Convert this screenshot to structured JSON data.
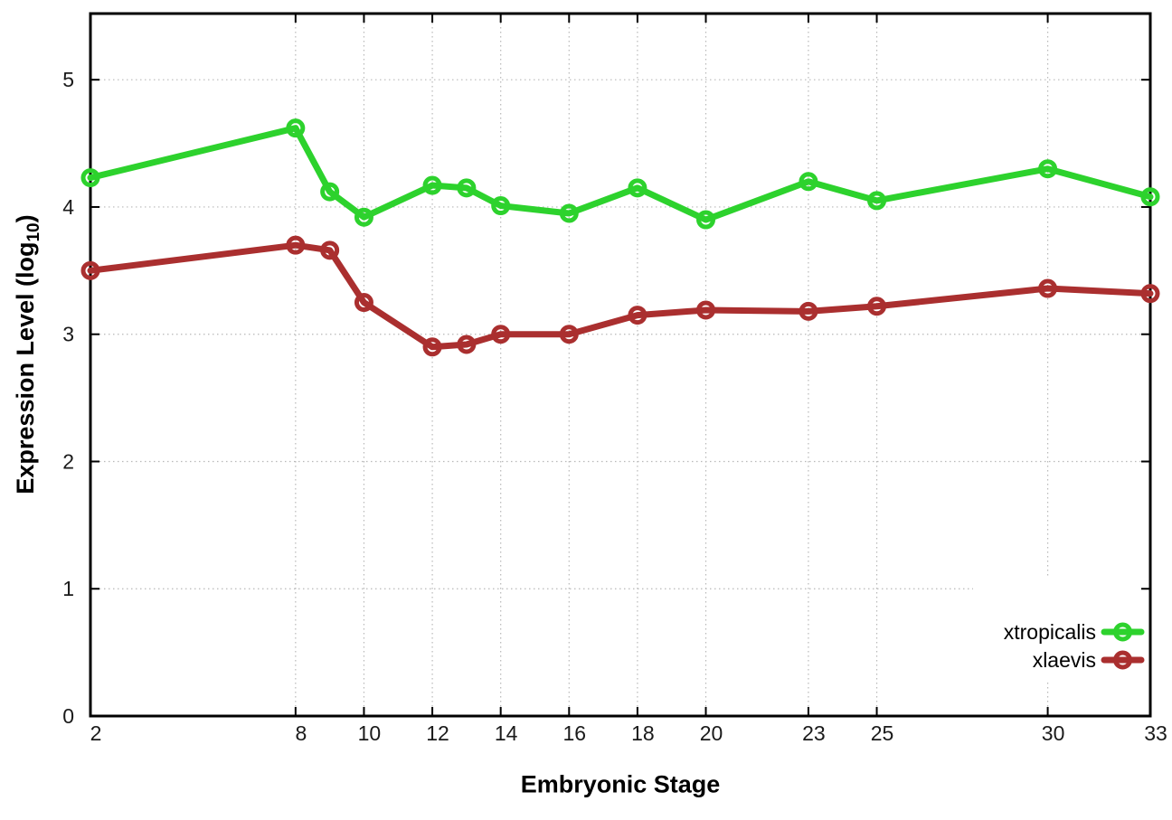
{
  "figure": {
    "background": "#ffffff",
    "xlabel": "Embryonic Stage",
    "ylabel_prefix": "Expression Level (log",
    "ylabel_sub": "10",
    "ylabel_suffix": ")"
  },
  "chart_data": {
    "type": "line",
    "title": "",
    "xlabel": "Embryonic Stage",
    "ylabel": "Expression Level (log10)",
    "x": [
      2,
      8,
      9,
      10,
      12,
      13,
      14,
      16,
      18,
      20,
      23,
      25,
      30,
      33
    ],
    "series": [
      {
        "name": "xtropicalis",
        "color": "#2dd22d",
        "values": [
          4.23,
          4.62,
          4.12,
          3.92,
          4.17,
          4.15,
          4.01,
          3.95,
          4.15,
          3.9,
          4.2,
          4.05,
          4.3,
          4.08
        ]
      },
      {
        "name": "xlaevis",
        "color": "#aa2f2f",
        "values": [
          3.5,
          3.7,
          3.66,
          3.25,
          2.9,
          2.92,
          3.0,
          3.0,
          3.15,
          3.19,
          3.18,
          3.22,
          3.36,
          3.32
        ]
      }
    ],
    "xticks": [
      2,
      8,
      10,
      12,
      14,
      16,
      18,
      20,
      23,
      25,
      30,
      33
    ],
    "yticks": [
      0,
      1,
      2,
      3,
      4,
      5
    ],
    "xlim": [
      2,
      33
    ],
    "ylim": [
      0,
      5.52
    ],
    "grid": true,
    "grid_color": "#b8b8b8",
    "axis_color": "#000000",
    "tick_label_color": "#1a1a1a",
    "legend_position": "inside-right",
    "legend": [
      "xtropicalis",
      "xlaevis"
    ]
  }
}
